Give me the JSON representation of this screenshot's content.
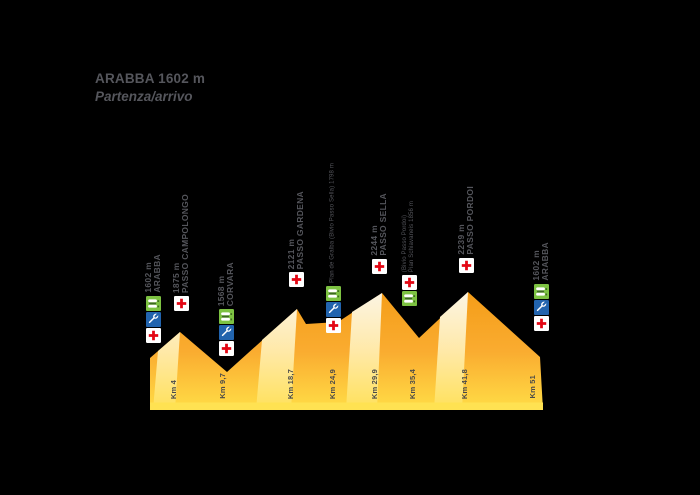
{
  "title": {
    "line1": "ARABBA 1602 m",
    "line2": "Partenza/arrivo"
  },
  "waypoints": [
    {
      "name": "ARABBA",
      "elevation": "1602 m",
      "icons": [
        "food",
        "wrench",
        "medical"
      ],
      "size": "normal"
    },
    {
      "name": "PASSO CAMPOLONGO",
      "elevation": "1875 m",
      "icons": [
        "medical"
      ],
      "size": "normal"
    },
    {
      "name": "CORVARA",
      "elevation": "1568 m",
      "icons": [
        "food",
        "wrench",
        "medical"
      ],
      "size": "normal"
    },
    {
      "name": "PASSO GARDENA",
      "elevation": "2121 m",
      "icons": [
        "medical"
      ],
      "size": "normal"
    },
    {
      "name": "Plan de Gralba",
      "note": "(Bivio Passo Sella)",
      "elevation": "1798 m",
      "icons": [
        "food",
        "wrench",
        "medical"
      ],
      "size": "small-oneline"
    },
    {
      "name": "PASSO SELLA",
      "elevation": "2244 m",
      "icons": [
        "medical"
      ],
      "size": "normal"
    },
    {
      "name": "Pian Schiavaneis",
      "note": "(Bivio Passo Pordoi)",
      "elevation": "1856 m",
      "icons": [
        "medical",
        "food"
      ],
      "size": "small-twoline"
    },
    {
      "name": "PASSO PORDOI",
      "elevation": "2239 m",
      "icons": [
        "medical"
      ],
      "size": "normal"
    },
    {
      "name": "ARABBA",
      "elevation": "1602 m",
      "icons": [
        "food",
        "wrench",
        "medical"
      ],
      "size": "normal"
    }
  ],
  "km_markers": [
    {
      "label": "Km 4"
    },
    {
      "label": "Km 9,7"
    },
    {
      "label": "Km 18,7"
    },
    {
      "label": "Km 24,9"
    },
    {
      "label": "Km 29,9"
    },
    {
      "label": "Km 35,4"
    },
    {
      "label": "Km 41,8"
    },
    {
      "label": "Km 51"
    }
  ],
  "icon_legend": {
    "food": "food-station-icon",
    "wrench": "mechanic-service-icon",
    "medical": "first-aid-icon"
  },
  "colors": {
    "orange_top": "#F49C17",
    "yellow_bottom": "#FFD844",
    "pale_highlight": "#FCF5E4",
    "bottom_strip": "#FFE252",
    "cross_red": "#E30613",
    "service_blue": "#2264AE",
    "food_green": "#7DC242",
    "label_text": "#55565C",
    "km_text": "#4A4A4A",
    "background": "#000000"
  },
  "chart_data": {
    "type": "area",
    "title": "ARABBA 1602 m — Partenza/arrivo",
    "x_km": [
      0,
      4,
      9.7,
      18.7,
      24.9,
      29.9,
      35.4,
      41.8,
      51
    ],
    "elevation_m": [
      1602,
      1875,
      1568,
      2121,
      1798,
      2244,
      1856,
      2239,
      1602
    ],
    "point_names": [
      "Arabba",
      "Passo Campolongo",
      "Corvara",
      "Passo Gardena",
      "Plan de Gralba (Bivio Passo Sella)",
      "Passo Sella",
      "Pian Schiavaneis (Bivio Passo Pordoi)",
      "Passo Pordoi",
      "Arabba"
    ],
    "xlabel": "Km",
    "ylabel": "m",
    "grid": false,
    "legend": "none"
  }
}
